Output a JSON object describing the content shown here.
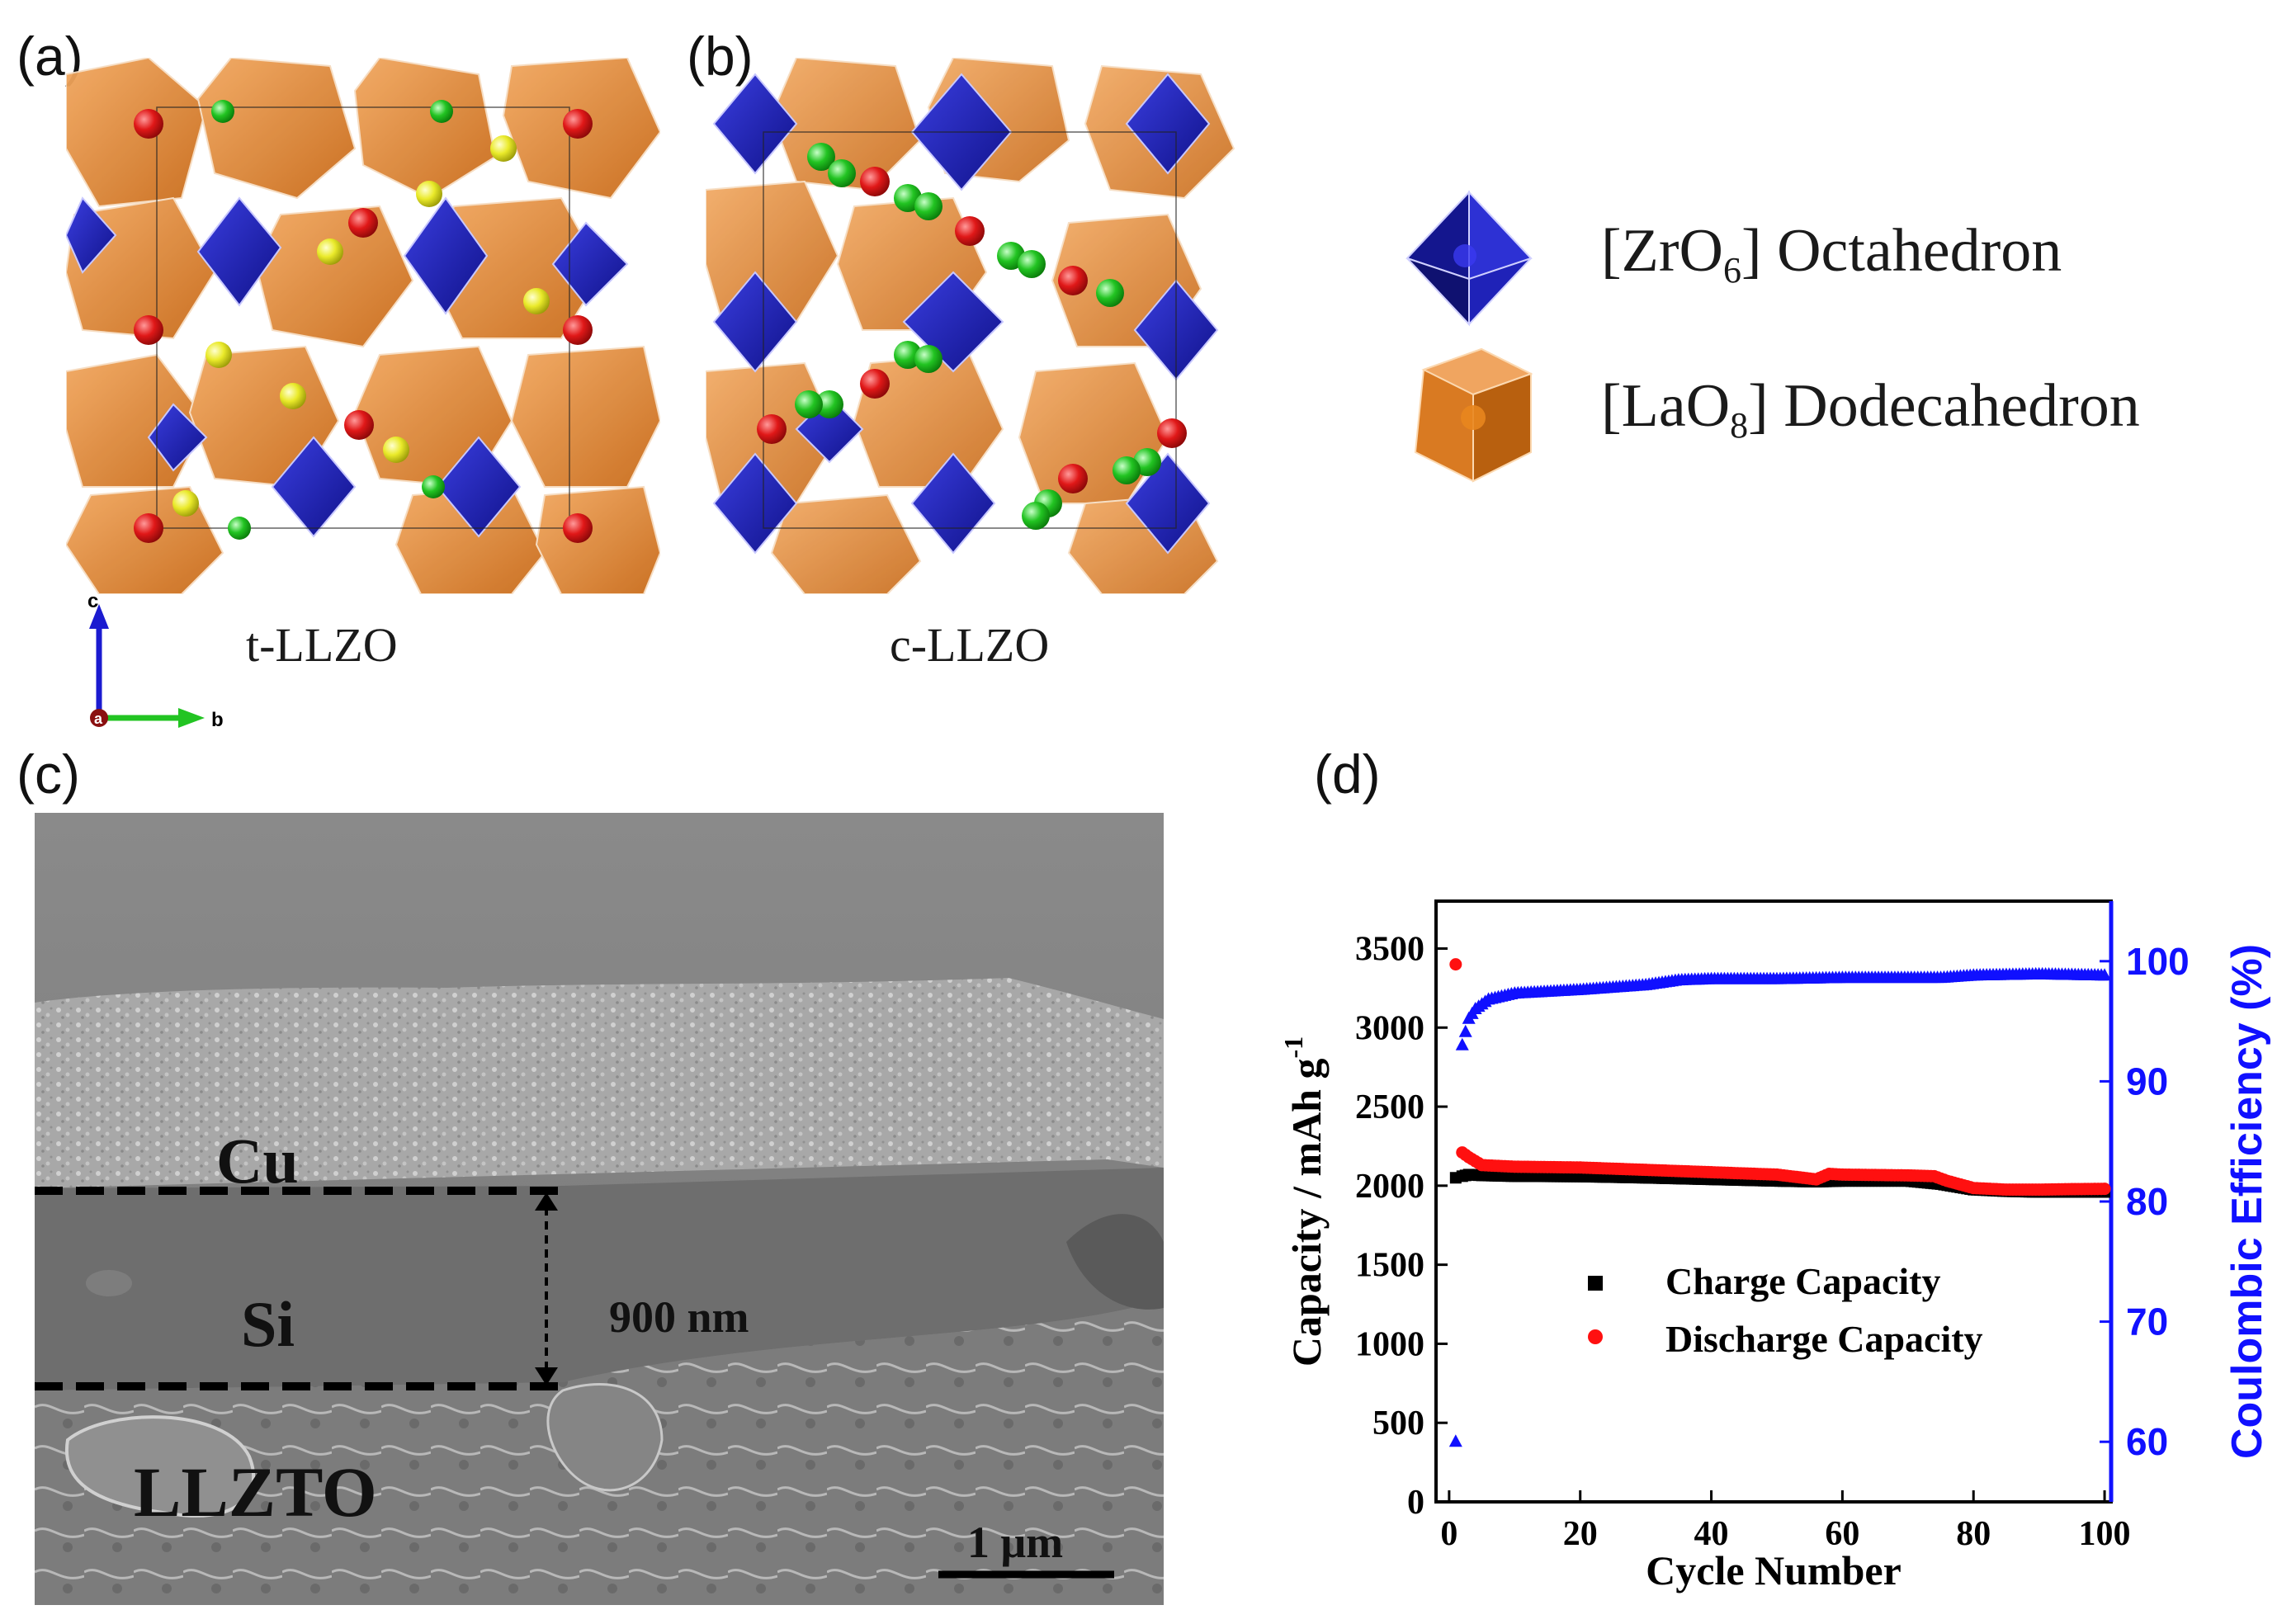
{
  "panels": {
    "a": {
      "letter": "(a)",
      "label": "t-LLZO"
    },
    "b": {
      "letter": "(b)",
      "label": "c-LLZO"
    },
    "c": {
      "letter": "(c)"
    },
    "d": {
      "letter": "(d)"
    }
  },
  "axes_triad": {
    "vertical": "c",
    "horizontal": "b",
    "origin": "a"
  },
  "legend": {
    "items": [
      {
        "pre": "[ZrO",
        "sub": "6",
        "post": "] Octahedron",
        "icon": "octahedron-icon",
        "color": "#1f22b8"
      },
      {
        "pre": "[LaO",
        "sub": "8",
        "post": "] Dodecahedron",
        "icon": "dodecahedron-icon",
        "color": "#d97a22"
      }
    ]
  },
  "sem": {
    "labels": {
      "cu": "Cu",
      "si": "Si",
      "llzto": "LLZTO"
    },
    "thickness": "900 nm",
    "scale_bar": "1 μm"
  },
  "colors": {
    "octahedron": "#1f22b8",
    "dodecahedron": "#d97a22",
    "li_red": "#d81818",
    "li_green": "#22c422",
    "li_yellow": "#eaea2a",
    "charge": "#000000",
    "discharge": "#ff1010",
    "efficiency": "#1010ff"
  },
  "chart_data": {
    "type": "scatter",
    "xlabel": "Cycle Number",
    "ylabel_left": "Capacity / mAh g",
    "ylabel_left_sup": "-1",
    "ylabel_right": "Coulombic Efficiency (%)",
    "xlim": [
      -2,
      101
    ],
    "ylim_left": [
      0,
      3800
    ],
    "ylim_right": [
      55,
      105
    ],
    "x_ticks": [
      0,
      20,
      40,
      60,
      80,
      100
    ],
    "y_left_ticks": [
      0,
      500,
      1000,
      1500,
      2000,
      2500,
      3000,
      3500
    ],
    "y_right_ticks": [
      60,
      70,
      80,
      90,
      100
    ],
    "y_right_tick_labels": [
      "60",
      "70",
      "80",
      "90",
      "100"
    ],
    "legend_position": "center-right",
    "series": [
      {
        "name": "Charge Capacity",
        "axis": "left",
        "marker": "square",
        "points": [
          [
            1,
            2050
          ],
          [
            2,
            2060
          ],
          [
            3,
            2070
          ],
          [
            5,
            2065
          ],
          [
            10,
            2060
          ],
          [
            20,
            2058
          ],
          [
            30,
            2050
          ],
          [
            40,
            2040
          ],
          [
            50,
            2030
          ],
          [
            56,
            2025
          ],
          [
            60,
            2030
          ],
          [
            70,
            2030
          ],
          [
            75,
            2010
          ],
          [
            80,
            1975
          ],
          [
            85,
            1965
          ],
          [
            90,
            1960
          ],
          [
            95,
            1960
          ],
          [
            100,
            1960
          ]
        ]
      },
      {
        "name": "Discharge Capacity",
        "axis": "left",
        "marker": "circle",
        "points": [
          [
            1,
            3400
          ],
          [
            2,
            2210
          ],
          [
            3,
            2180
          ],
          [
            5,
            2130
          ],
          [
            10,
            2120
          ],
          [
            20,
            2115
          ],
          [
            30,
            2100
          ],
          [
            40,
            2085
          ],
          [
            50,
            2070
          ],
          [
            56,
            2040
          ],
          [
            58,
            2075
          ],
          [
            60,
            2070
          ],
          [
            70,
            2065
          ],
          [
            74,
            2060
          ],
          [
            76,
            2030
          ],
          [
            80,
            1985
          ],
          [
            85,
            1975
          ],
          [
            90,
            1975
          ],
          [
            95,
            1978
          ],
          [
            100,
            1980
          ]
        ]
      },
      {
        "name": "Coulombic Efficiency",
        "axis": "right",
        "marker": "triangle",
        "points": [
          [
            1,
            60
          ],
          [
            2,
            93
          ],
          [
            3,
            95.2
          ],
          [
            4,
            96
          ],
          [
            6,
            96.8
          ],
          [
            10,
            97.3
          ],
          [
            20,
            97.6
          ],
          [
            30,
            98
          ],
          [
            35,
            98.4
          ],
          [
            40,
            98.5
          ],
          [
            50,
            98.5
          ],
          [
            60,
            98.6
          ],
          [
            70,
            98.6
          ],
          [
            75,
            98.6
          ],
          [
            80,
            98.8
          ],
          [
            90,
            98.9
          ],
          [
            100,
            98.8
          ]
        ]
      }
    ]
  }
}
